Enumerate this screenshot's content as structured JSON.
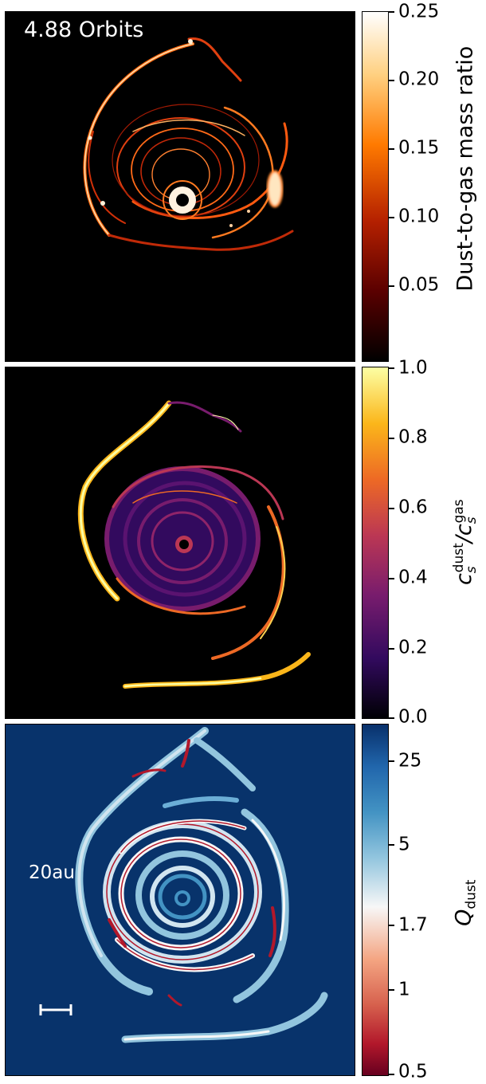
{
  "panels": [
    {
      "annotation": "4.88 Orbits",
      "colorbar": {
        "label_parts": [
          "Dust-to-gas mass ratio"
        ],
        "ticks": [
          "0.25",
          "0.20",
          "0.15",
          "0.10",
          "0.05"
        ],
        "colormap": "gist_heat",
        "colors": [
          "#000000",
          "#5a0000",
          "#b42000",
          "#ff7a00",
          "#ffd080",
          "#ffffff"
        ]
      },
      "background": "#000000"
    },
    {
      "colorbar": {
        "label_parts": [
          "c",
          "s",
          "dust",
          "/c",
          "s",
          "gas"
        ],
        "ticks": [
          "1.0",
          "0.8",
          "0.6",
          "0.4",
          "0.2",
          "0.0"
        ],
        "colormap": "inferno",
        "colors": [
          "#000004",
          "#320a5e",
          "#781c6d",
          "#bb3754",
          "#ed6925",
          "#fbb61a",
          "#fcffa4"
        ]
      },
      "background": "#000000"
    },
    {
      "colorbar": {
        "label_parts": [
          "Q",
          "dust"
        ],
        "ticks": [
          "25",
          "5",
          "1.7",
          "1",
          "0.5"
        ],
        "colormap": "RdBu",
        "colors": [
          "#67001f",
          "#d6604d",
          "#f4a582",
          "#f7f7f7",
          "#92c5de",
          "#4393c3",
          "#2166ac",
          "#08306b"
        ]
      },
      "background": "#08336b",
      "scalebar_label": "20au"
    }
  ]
}
